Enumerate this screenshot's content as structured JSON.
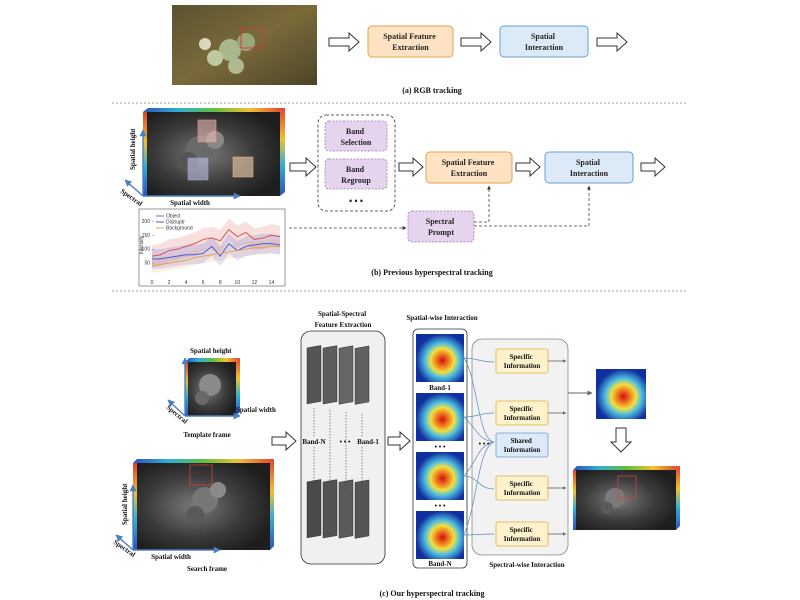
{
  "colors": {
    "orange_fill": "#fde3c3",
    "orange_stroke": "#e6a14e",
    "blue_fill": "#dce9f7",
    "blue_stroke": "#6a9fd3",
    "purple_fill": "#e6d4ef",
    "purple_stroke": "#9a78b3",
    "yellow_fill": "#fdf2cc",
    "yellow_stroke": "#d9b23a",
    "axis_blue": "#4a7fc0"
  },
  "panel_a": {
    "feature_box": [
      "Spatial Feature",
      "Extraction"
    ],
    "interaction_box": [
      "Spatial",
      "Interaction"
    ],
    "caption": "(a) RGB tracking"
  },
  "panel_b": {
    "band_selection": [
      "Band",
      "Selection"
    ],
    "band_regroup": [
      "Band",
      "Regroup"
    ],
    "ellipsis": "• • •",
    "feature_box": [
      "Spatial Feature",
      "Extraction"
    ],
    "interaction_box": [
      "Spatial",
      "Interaction"
    ],
    "prompt_box": [
      "Spectral",
      "Prompt"
    ],
    "axis_height": "Spatial height",
    "axis_width": "Spatial width",
    "axis_spectral": "Spectral",
    "caption": "(b) Previous hyperspectral tracking"
  },
  "chart_data": {
    "type": "line",
    "ylabel": "Intensity",
    "x": [
      0,
      1,
      2,
      3,
      4,
      5,
      6,
      7,
      8,
      9,
      10,
      11,
      12,
      13,
      14,
      15
    ],
    "xticks": [
      "0",
      "2",
      "4",
      "6",
      "8",
      "10",
      "12",
      "14"
    ],
    "yticks": [
      "50",
      "100",
      "150",
      "200"
    ],
    "ylim": [
      0,
      230
    ],
    "legend_position": "top-left",
    "series": [
      {
        "name": "Object",
        "color": "#d9534f",
        "values": [
          75,
          80,
          95,
          100,
          110,
          120,
          135,
          140,
          130,
          170,
          145,
          160,
          135,
          140,
          150,
          145
        ]
      },
      {
        "name": "Distruptr",
        "color": "#4a5bd6",
        "values": [
          65,
          65,
          70,
          75,
          80,
          80,
          85,
          110,
          75,
          120,
          95,
          110,
          115,
          120,
          120,
          115
        ]
      },
      {
        "name": "Background",
        "color": "#e8a060",
        "values": [
          40,
          45,
          50,
          55,
          60,
          70,
          75,
          80,
          85,
          90,
          95,
          100,
          105,
          105,
          110,
          110
        ]
      }
    ]
  },
  "panel_c": {
    "feature_title": [
      "Spatial-Spectral",
      "Feature Extraction"
    ],
    "spatial_title": "Spatial-wise Interaction",
    "spectral_title": "Spectral-wise Interaction",
    "template_label": "Template frame",
    "search_label": "Search frame",
    "axis_height": "Spatial height",
    "axis_width": "Spatial width",
    "axis_spectral": "Spectral",
    "band_n": "Band-N",
    "band_1": "Band-1",
    "dots": "• • •",
    "info_boxes": [
      [
        "Specific",
        "Information"
      ],
      [
        "Specific",
        "Information"
      ],
      [
        "Shared",
        "Information"
      ],
      [
        "Specific",
        "Information"
      ],
      [
        "Specific",
        "Information"
      ]
    ],
    "caption": "(c) Our hyperspectral tracking"
  }
}
